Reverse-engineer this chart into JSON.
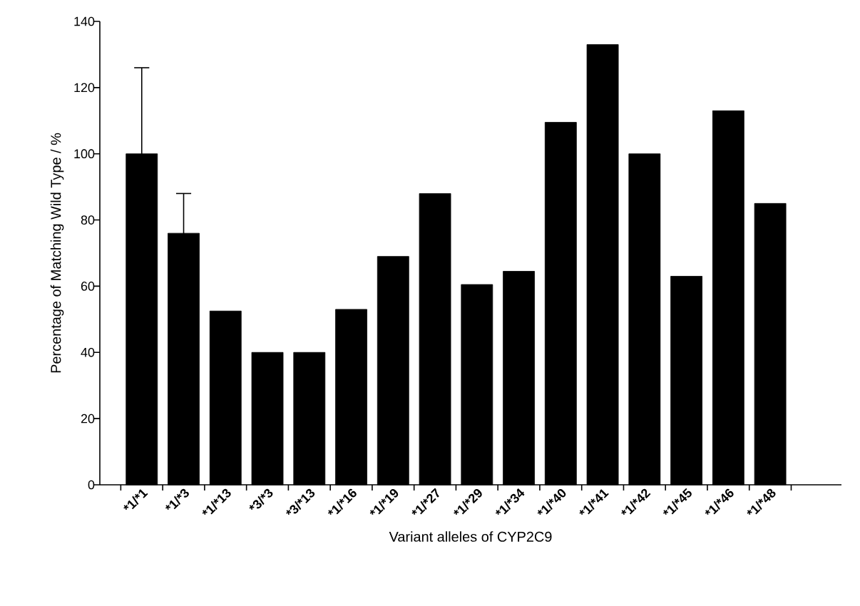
{
  "chart_data": {
    "type": "bar",
    "xlabel": "Variant alleles of CYP2C9",
    "ylabel": "Percentage of Matching Wild Type / %",
    "categories": [
      "*1/*1",
      "*1/*3",
      "*1/*13",
      "*3/*3",
      "*3/*13",
      "*1/*16",
      "*1/*19",
      "*1/*27",
      "*1/*29",
      "*1/*34",
      "*1/*40",
      "*1/*41",
      "*1/*42",
      "*1/*45",
      "*1/*46",
      "*1/*48"
    ],
    "values": [
      100,
      76,
      52.5,
      40,
      40,
      53,
      69,
      88,
      60.5,
      64.5,
      109.5,
      133,
      100,
      63,
      113,
      85
    ],
    "errors": [
      26,
      12,
      null,
      null,
      null,
      null,
      null,
      null,
      null,
      null,
      null,
      null,
      null,
      null,
      null,
      null
    ],
    "color": "#000000",
    "ylim": [
      0,
      140
    ],
    "yticks": [
      0,
      20,
      40,
      60,
      80,
      100,
      120,
      140
    ]
  }
}
